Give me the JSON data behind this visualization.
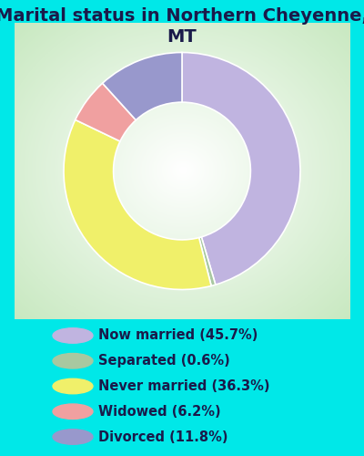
{
  "title": "Marital status in Northern Cheyenne,\nMT",
  "slices": [
    45.7,
    0.6,
    36.3,
    6.2,
    11.8
  ],
  "labels": [
    "Now married (45.7%)",
    "Separated (0.6%)",
    "Never married (36.3%)",
    "Widowed (6.2%)",
    "Divorced (11.8%)"
  ],
  "colors": [
    "#c0b4e0",
    "#a8c8a0",
    "#f0f06a",
    "#f0a0a0",
    "#9898cc"
  ],
  "legend_colors": [
    "#c0b4e0",
    "#a8c8a0",
    "#f0f06a",
    "#f0a0a0",
    "#9898cc"
  ],
  "background_color": "#00e8e8",
  "chart_bg_color": "#d8eed8",
  "title_color": "#1a1a4a",
  "legend_text_color": "#1a1a4a",
  "title_fontsize": 14,
  "legend_fontsize": 10.5,
  "donut_width": 0.42,
  "startangle": 90
}
